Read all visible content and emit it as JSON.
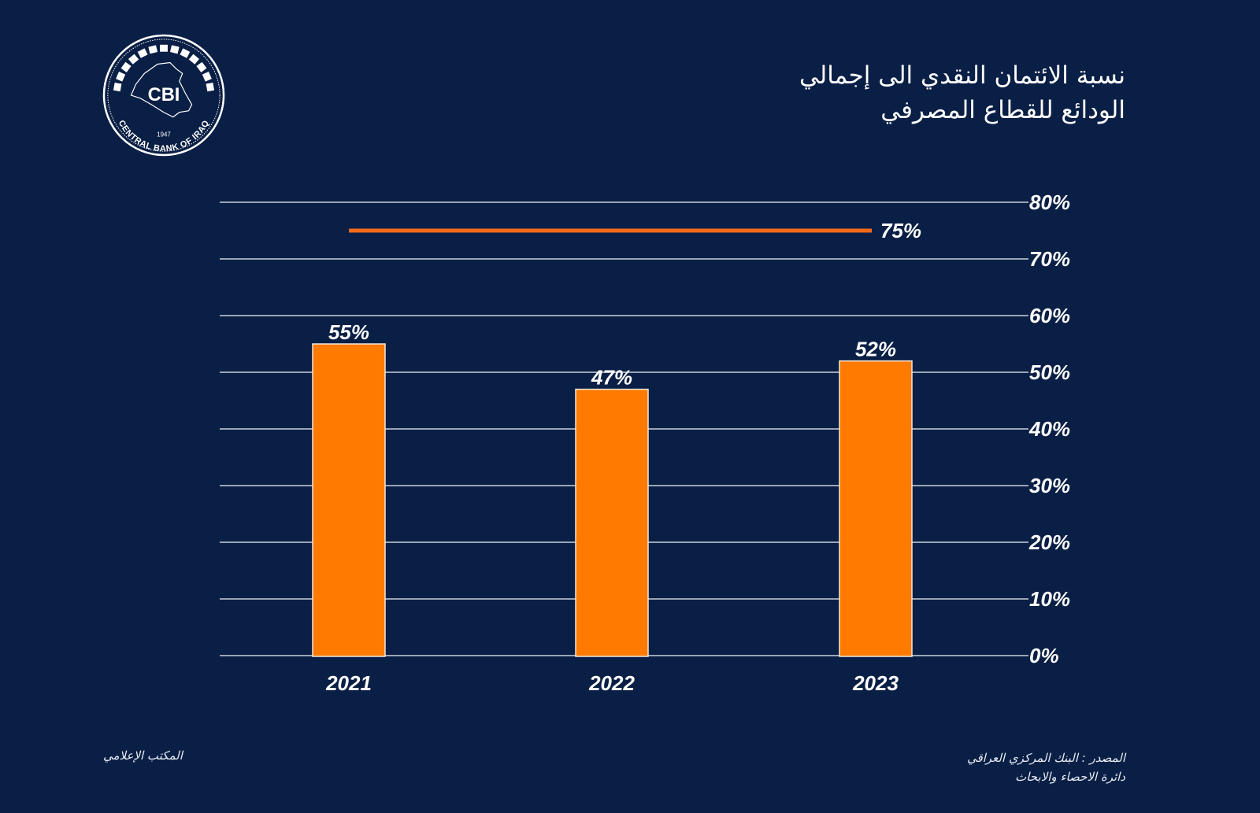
{
  "logo": {
    "abbr": "CBI",
    "ring_text": "CENTRAL BANK OF IRAQ",
    "year": "1947"
  },
  "header": {
    "title_line1": "نسبة الائتمان النقدي الى إجمالي",
    "title_line2": "الودائع للقطاع المصرفي"
  },
  "footer": {
    "office": "المكتب الإعلامي",
    "source_line1": "المصدر : البنك المركزي العراقي",
    "source_line2": "دائرة الاحصاء والابحاث"
  },
  "colors": {
    "background": "#0a1f45",
    "bar": "#ff7a00",
    "target_line": "#f26a1b",
    "grid": "#c9d0dc",
    "text": "#ffffff"
  },
  "chart_data": {
    "type": "bar",
    "title": "نسبة الائتمان النقدي الى إجمالي الودائع للقطاع المصرفي",
    "categories": [
      "2021",
      "2022",
      "2023"
    ],
    "values": [
      55,
      47,
      52
    ],
    "data_labels": [
      "55%",
      "47%",
      "52%"
    ],
    "reference_line": {
      "value": 75,
      "label": "75%"
    },
    "xlabel": "",
    "ylabel": "",
    "ylim": [
      0,
      80
    ],
    "yticks": [
      0,
      10,
      20,
      30,
      40,
      50,
      60,
      70,
      80
    ],
    "ytick_labels": [
      "0%",
      "10%",
      "20%",
      "30%",
      "40%",
      "50%",
      "60%",
      "70%",
      "80%"
    ],
    "y_axis_side": "right",
    "grid": true,
    "legend": "none"
  }
}
